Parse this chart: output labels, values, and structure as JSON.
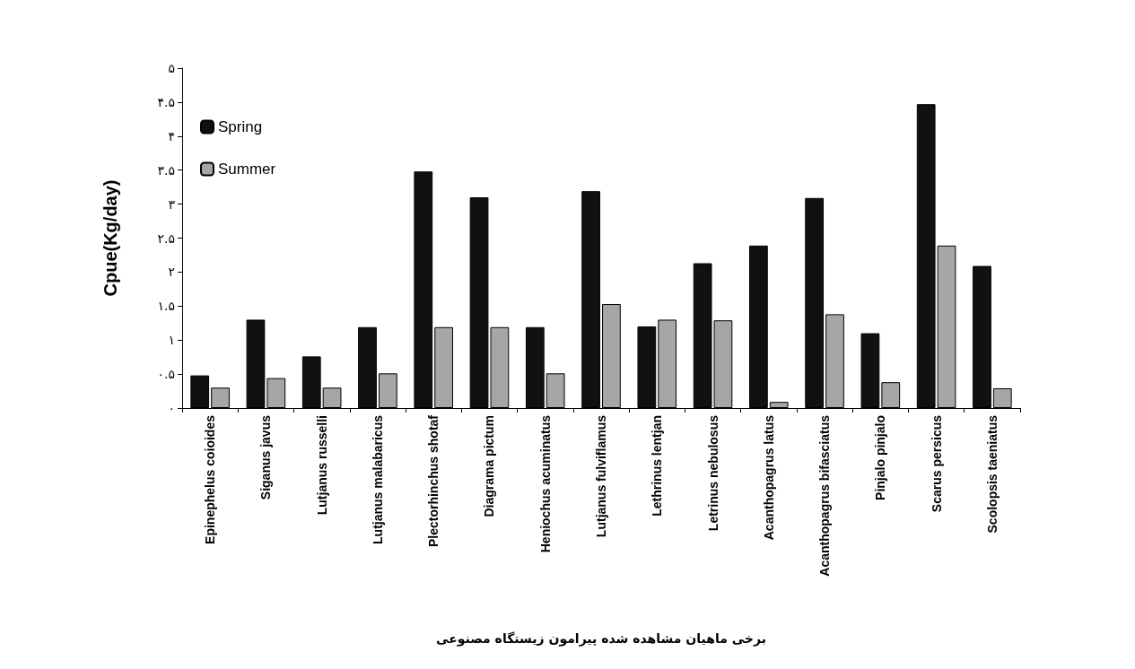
{
  "chart_data": {
    "type": "bar",
    "xlabel": "برخی ماهیان مشاهده شده پیرامون زیستگاه مصنوعی",
    "ylabel": "Cpue(Kg/day)",
    "categories": [
      "Epinephelus coioides",
      "Siganus javus",
      "Lutjanus russelli",
      "Lutjanus malabaricus",
      "Plectorhinchus shotaf",
      "Diagrama pictum",
      "Heniochus acuminatus",
      "Lutjanus fulviflamus",
      "Lethrinus lentjan",
      "Letrinus nebulosus",
      "Acanthopagrus latus",
      "Acanthopagrus bifasciatus",
      "Pinjalo pinjalo",
      "Scarus persicus",
      "Scolopsis taeniatus"
    ],
    "series": [
      {
        "name": "Spring",
        "color": "#111111",
        "values": [
          0.48,
          1.3,
          0.76,
          1.19,
          3.48,
          3.1,
          1.19,
          3.19,
          1.2,
          2.13,
          2.39,
          3.09,
          1.1,
          4.47,
          2.09
        ]
      },
      {
        "name": "Summer",
        "color": "#a6a6a6",
        "values": [
          0.3,
          0.44,
          0.3,
          0.51,
          1.19,
          1.19,
          0.51,
          1.53,
          1.3,
          1.29,
          0.09,
          1.38,
          0.38,
          2.39,
          0.29
        ]
      }
    ],
    "ylim": [
      0,
      5
    ],
    "yticks": [
      {
        "value": 0,
        "label": "۰"
      },
      {
        "value": 0.5,
        "label": "۰.۵"
      },
      {
        "value": 1,
        "label": "۱"
      },
      {
        "value": 1.5,
        "label": "۱.۵"
      },
      {
        "value": 2,
        "label": "۲"
      },
      {
        "value": 2.5,
        "label": "۲.۵"
      },
      {
        "value": 3,
        "label": "۳"
      },
      {
        "value": 3.5,
        "label": "۳.۵"
      },
      {
        "value": 4,
        "label": "۴"
      },
      {
        "value": 4.5,
        "label": "۴.۵"
      },
      {
        "value": 5,
        "label": "۵"
      }
    ],
    "grid": false,
    "legend": "top left"
  }
}
